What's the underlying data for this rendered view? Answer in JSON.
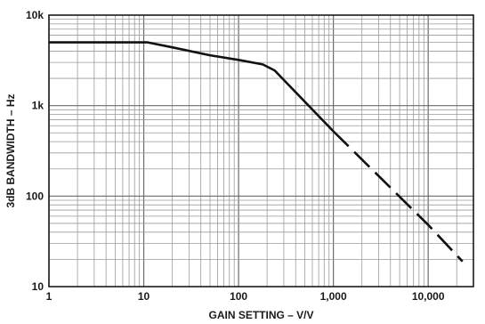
{
  "chart_data": {
    "type": "line",
    "xlabel": "GAIN SETTING – V/V",
    "ylabel": "3dB BANDWIDTH – Hz",
    "x_scale": "log",
    "y_scale": "log",
    "xlim": [
      1,
      30000
    ],
    "ylim": [
      10,
      10000
    ],
    "grid": true,
    "x_ticks": [
      {
        "value": 1,
        "label": "1"
      },
      {
        "value": 10,
        "label": "10"
      },
      {
        "value": 100,
        "label": "100"
      },
      {
        "value": 1000,
        "label": "1,000"
      },
      {
        "value": 10000,
        "label": "10,000"
      }
    ],
    "y_ticks": [
      {
        "value": 10,
        "label": "10"
      },
      {
        "value": 100,
        "label": "100"
      },
      {
        "value": 1000,
        "label": "1k"
      },
      {
        "value": 10000,
        "label": "10k"
      }
    ],
    "series": [
      {
        "style": "solid",
        "color": "#111111",
        "points": [
          [
            1,
            5000
          ],
          [
            11,
            5000
          ],
          [
            20,
            4400
          ],
          [
            50,
            3600
          ],
          [
            100,
            3200
          ],
          [
            180,
            2850
          ],
          [
            240,
            2450
          ],
          [
            1000,
            520
          ]
        ]
      },
      {
        "style": "dashed",
        "color": "#111111",
        "points": [
          [
            1000,
            520
          ],
          [
            10000,
            48
          ],
          [
            23000,
            19
          ]
        ]
      }
    ]
  }
}
